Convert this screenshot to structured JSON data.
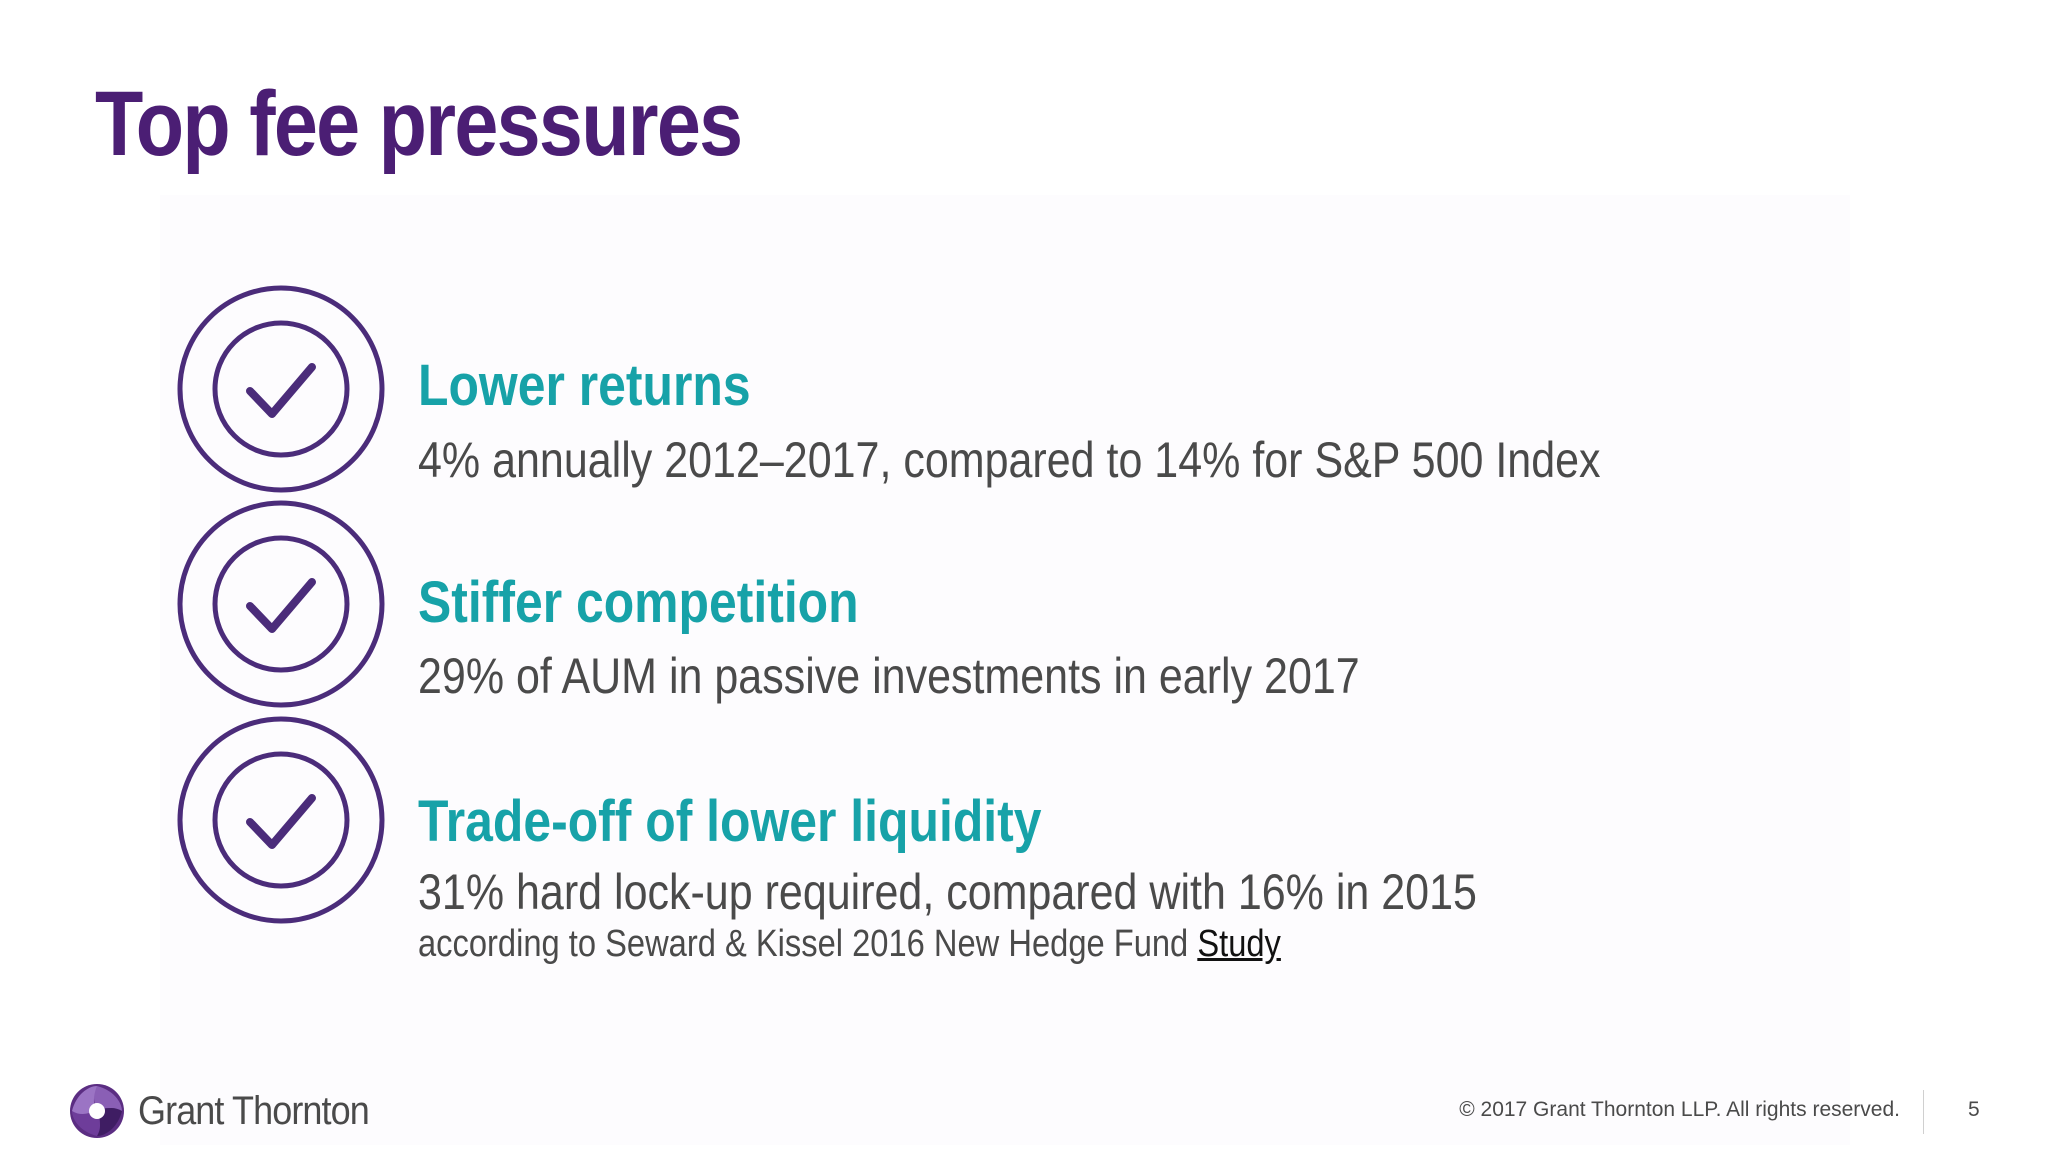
{
  "slide": {
    "title": "Top fee pressures",
    "page_number": "5"
  },
  "colors": {
    "title": "#4b1e74",
    "heading": "#17a2a8",
    "body_text": "#4a4a4a",
    "icon": "#4b2c7a"
  },
  "items": [
    {
      "icon": "check-circle-icon",
      "heading": "Lower returns",
      "description": "4% annually 2012–2017, compared to 14% for S&P 500 Index"
    },
    {
      "icon": "check-circle-icon",
      "heading": "Stiffer competition",
      "description": "29% of AUM in passive investments in early 2017"
    },
    {
      "icon": "check-circle-icon",
      "heading": "Trade-off of lower liquidity",
      "description": "31% hard lock-up required, compared with 16% in 2015",
      "source_prefix": "according to Seward & Kissel 2016 New Hedge Fund ",
      "source_link": "Study"
    }
  ],
  "footer": {
    "logo_text": "Grant Thornton",
    "copyright": "© 2017 Grant Thornton LLP. All rights reserved."
  }
}
